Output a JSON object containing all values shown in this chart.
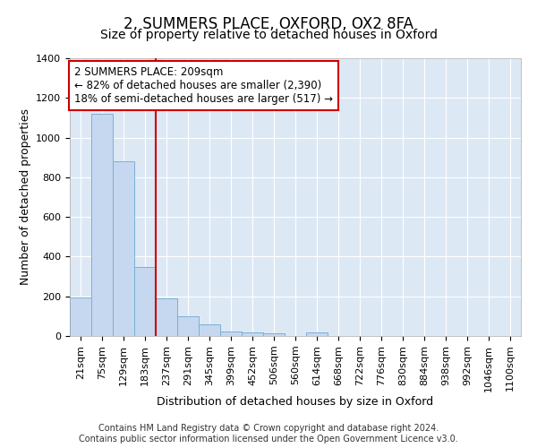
{
  "title": "2, SUMMERS PLACE, OXFORD, OX2 8FA",
  "subtitle": "Size of property relative to detached houses in Oxford",
  "xlabel": "Distribution of detached houses by size in Oxford",
  "ylabel": "Number of detached properties",
  "categories": [
    "21sqm",
    "75sqm",
    "129sqm",
    "183sqm",
    "237sqm",
    "291sqm",
    "345sqm",
    "399sqm",
    "452sqm",
    "506sqm",
    "560sqm",
    "614sqm",
    "668sqm",
    "722sqm",
    "776sqm",
    "830sqm",
    "884sqm",
    "938sqm",
    "992sqm",
    "1046sqm",
    "1100sqm"
  ],
  "values": [
    195,
    1120,
    880,
    350,
    190,
    100,
    57,
    22,
    18,
    15,
    0,
    18,
    0,
    0,
    0,
    0,
    0,
    0,
    0,
    0,
    0
  ],
  "bar_color": "#c5d8f0",
  "bar_edge_color": "#7bafd4",
  "property_line_color": "#cc0000",
  "annotation_text": "2 SUMMERS PLACE: 209sqm\n← 82% of detached houses are smaller (2,390)\n18% of semi-detached houses are larger (517) →",
  "annotation_box_color": "white",
  "annotation_box_edge_color": "#cc0000",
  "footer_text": "Contains HM Land Registry data © Crown copyright and database right 2024.\nContains public sector information licensed under the Open Government Licence v3.0.",
  "ylim": [
    0,
    1400
  ],
  "background_color": "#dde8f5",
  "grid_color": "white",
  "title_fontsize": 12,
  "subtitle_fontsize": 10,
  "xlabel_fontsize": 9,
  "ylabel_fontsize": 9,
  "tick_fontsize": 8,
  "annotation_fontsize": 8.5,
  "footer_fontsize": 7
}
